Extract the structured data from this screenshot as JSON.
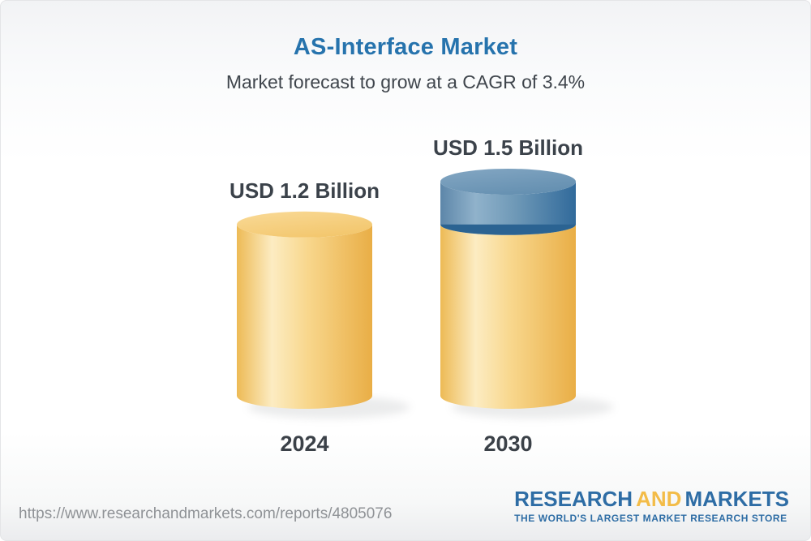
{
  "header": {
    "title": "AS-Interface Market",
    "subtitle": "Market forecast to grow at a CAGR of 3.4%"
  },
  "chart_data": {
    "type": "bar",
    "subtype": "3d-cylinder-stacked",
    "title": "AS-Interface Market",
    "subtitle": "Market forecast to grow at a CAGR of 3.4%",
    "cagr_percent": 3.4,
    "unit": "USD Billion",
    "categories": [
      "2024",
      "2030"
    ],
    "series": [
      {
        "name": "market-value-base",
        "color": "#f5cd79",
        "values": [
          1.2,
          1.2
        ]
      },
      {
        "name": "forecast-growth",
        "color": "#4d7ca6",
        "values": [
          0,
          0.3
        ]
      }
    ],
    "totals": [
      1.2,
      1.5
    ],
    "value_labels": [
      "USD 1.2 Billion",
      "USD 1.5 Billion"
    ],
    "xlabel": "",
    "ylabel": "",
    "ylim": [
      0,
      1.5
    ],
    "grid": false,
    "legend": false
  },
  "footer": {
    "source_url": "https://www.researchandmarkets.com/reports/4805076",
    "logo": {
      "part1": "RESEARCH",
      "part2": "AND",
      "part3": "MARKETS",
      "tagline": "THE WORLD'S LARGEST MARKET RESEARCH STORE"
    }
  },
  "colors": {
    "title_blue": "#2673ad",
    "text_dark": "#3b424a",
    "url_gray": "#8f9296",
    "logo_blue": "#2e6da5",
    "logo_yellow": "#f3bc48",
    "cylinder_yellow": "#f5cd79",
    "cylinder_blue": "#4d7ca6",
    "cylinder_blue_rim": "#2b6392"
  }
}
